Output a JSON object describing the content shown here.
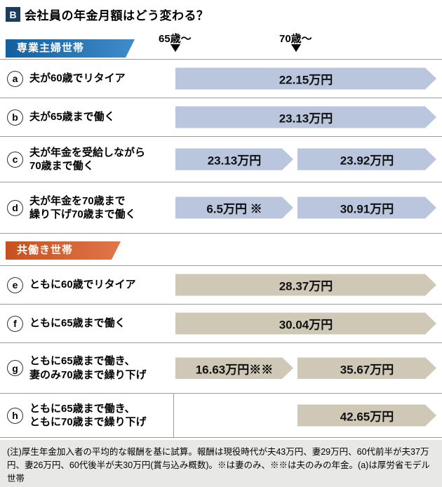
{
  "title": {
    "badge": "B",
    "text": "会社員の年金月額はどう変わる？"
  },
  "columns": {
    "col65": "65歳〜",
    "col70": "70歳〜"
  },
  "sections": [
    {
      "header": "専業主婦世帯",
      "rows": [
        {
          "letter": "a",
          "lines": [
            "夫が60歳でリタイア"
          ],
          "arrows": {
            "full": "22.15万円"
          }
        },
        {
          "letter": "b",
          "lines": [
            "夫が65歳まで働く"
          ],
          "arrows": {
            "full": "23.13万円"
          }
        },
        {
          "letter": "c",
          "lines": [
            "夫が年金を受給しながら",
            "70歳まで働く"
          ],
          "arrows": {
            "first": "23.13万円",
            "second": "23.92万円"
          }
        },
        {
          "letter": "d",
          "lines": [
            "夫が年金を70歳まで",
            "繰り下げ70歳まで働く"
          ],
          "arrows": {
            "first": "6.5万円 ※",
            "second": "30.91万円"
          }
        }
      ]
    },
    {
      "header": "共働き世帯",
      "rows": [
        {
          "letter": "e",
          "lines": [
            "ともに60歳でリタイア"
          ],
          "arrows": {
            "full": "28.37万円"
          }
        },
        {
          "letter": "f",
          "lines": [
            "ともに65歳まで働く"
          ],
          "arrows": {
            "full": "30.04万円"
          }
        },
        {
          "letter": "g",
          "lines": [
            "ともに65歳まで働き、",
            "妻のみ70歳まで繰り下げ"
          ],
          "arrows": {
            "first": "16.63万円※※",
            "second": "35.67万円"
          }
        },
        {
          "letter": "h",
          "lines": [
            "ともに65歳まで働き、",
            "ともに70歳まで繰り下げ"
          ],
          "arrows": {
            "second": "42.65万円"
          }
        }
      ]
    }
  ],
  "note": "(注)厚生年金加入者の平均的な報酬を基に試算。報酬は現役時代が夫43万円、妻29万円、60代前半が夫37万円、妻26万円、60代後半が夫30万円(賞与込み概数)。※は妻のみ、※※は夫のみの年金。(a)は厚労省モデル世帯",
  "colors": {
    "blue_ribbon": "#14609f",
    "orange_ribbon": "#c5511f",
    "blue_arrow": "#b9c6dd",
    "tan_arrow": "#cfc8b6",
    "badge": "#1c3d5e"
  },
  "chart_data": {
    "type": "bar",
    "title": "会社員の年金月額はどう変わる？",
    "unit": "万円",
    "periods": [
      "65歳〜",
      "70歳〜"
    ],
    "groups": [
      {
        "name": "専業主婦世帯",
        "rows": [
          {
            "id": "a",
            "label": "夫が60歳でリタイア",
            "values": {
              "65歳〜": 22.15,
              "70歳〜": 22.15
            },
            "spans_both": true
          },
          {
            "id": "b",
            "label": "夫が65歳まで働く",
            "values": {
              "65歳〜": 23.13,
              "70歳〜": 23.13
            },
            "spans_both": true
          },
          {
            "id": "c",
            "label": "夫が年金を受給しながら70歳まで働く",
            "values": {
              "65歳〜": 23.13,
              "70歳〜": 23.92
            },
            "spans_both": false
          },
          {
            "id": "d",
            "label": "夫が年金を70歳まで繰り下げ70歳まで働く",
            "values": {
              "65歳〜": 6.5,
              "70歳〜": 30.91
            },
            "spans_both": false,
            "marker": "※"
          }
        ]
      },
      {
        "name": "共働き世帯",
        "rows": [
          {
            "id": "e",
            "label": "ともに60歳でリタイア",
            "values": {
              "65歳〜": 28.37,
              "70歳〜": 28.37
            },
            "spans_both": true
          },
          {
            "id": "f",
            "label": "ともに65歳まで働く",
            "values": {
              "65歳〜": 30.04,
              "70歳〜": 30.04
            },
            "spans_both": true
          },
          {
            "id": "g",
            "label": "ともに65歳まで働き、妻のみ70歳まで繰り下げ",
            "values": {
              "65歳〜": 16.63,
              "70歳〜": 35.67
            },
            "spans_both": false,
            "marker": "※※"
          },
          {
            "id": "h",
            "label": "ともに65歳まで働き、ともに70歳まで繰り下げ",
            "values": {
              "65歳〜": null,
              "70歳〜": 42.65
            },
            "spans_both": false
          }
        ]
      }
    ],
    "footnote": "(注)厚生年金加入者の平均的な報酬を基に試算。報酬は現役時代が夫43万円、妻29万円、60代前半が夫37万円、妻26万円、60代後半が夫30万円(賞与込み概数)。※は妻のみ、※※は夫のみの年金。(a)は厚労省モデル世帯"
  }
}
